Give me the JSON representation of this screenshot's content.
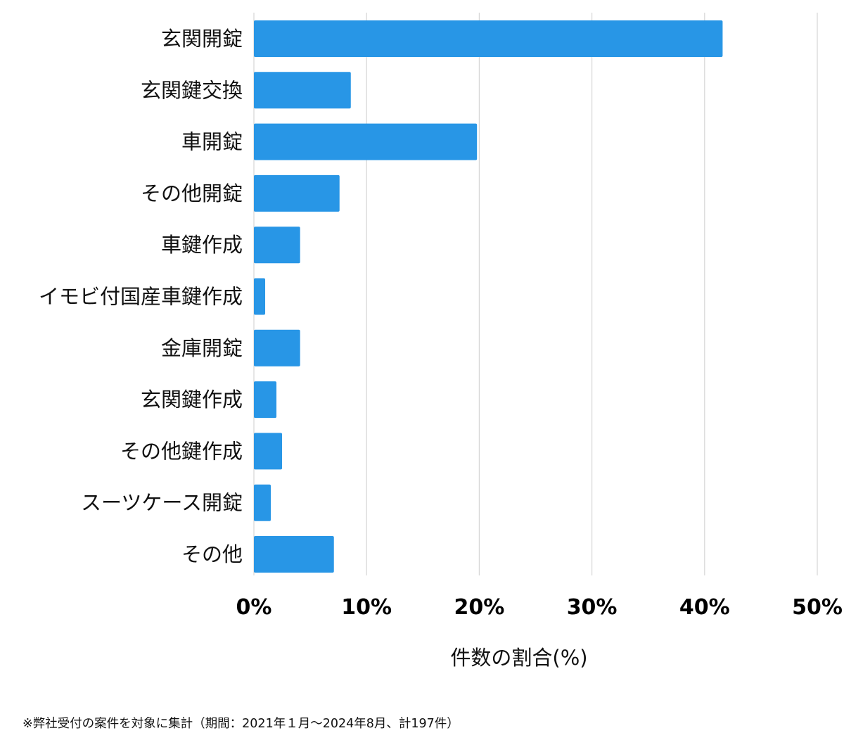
{
  "chart_data": {
    "type": "bar",
    "orientation": "horizontal",
    "categories": [
      "玄関開錠",
      "玄関鍵交換",
      "車開錠",
      "その他開錠",
      "車鍵作成",
      "イモビ付国産車鍵作成",
      "金庫開錠",
      "玄関鍵作成",
      "その他鍵作成",
      "スーツケース開錠",
      "その他"
    ],
    "values": [
      41.6,
      8.6,
      19.8,
      7.6,
      4.1,
      1.0,
      4.1,
      2.0,
      2.5,
      1.5,
      7.1
    ],
    "xlim": [
      0,
      50
    ],
    "x_ticks": [
      "0%",
      "10%",
      "20%",
      "30%",
      "40%",
      "50%"
    ],
    "xlabel": "件数の割合(%)",
    "grid": "vertical",
    "colors": {
      "bar": "#2896e6",
      "grid": "#d6d6d6"
    }
  },
  "footnote": "※弊社受付の案件を対象に集計（期間：2021年１月〜2024年8月、計197件）"
}
